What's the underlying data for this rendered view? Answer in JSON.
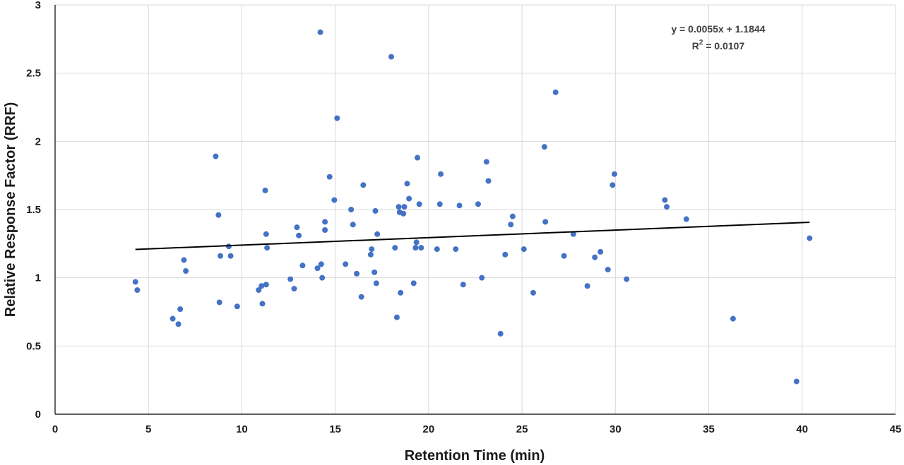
{
  "chart_data": {
    "type": "scatter",
    "xlabel": "Retention Time (min)",
    "ylabel": "Relative Response Factor (RRF)",
    "xlim": [
      0,
      45
    ],
    "ylim": [
      0,
      3
    ],
    "x_ticks": [
      "0",
      "5",
      "10",
      "15",
      "20",
      "25",
      "30",
      "35",
      "40",
      "45"
    ],
    "y_ticks": [
      "0",
      "0.5",
      "1",
      "1.5",
      "2",
      "2.5",
      "3"
    ],
    "grid": true,
    "marker_color": "#4472C4",
    "trendline": {
      "slope": 0.0055,
      "intercept": 1.1844,
      "x_range": [
        4.3,
        40.4
      ],
      "equation": "y = 0.0055x + 1.1844",
      "r2_prefix": "R",
      "r2_sup": "2",
      "r2_value": " = 0.0107"
    },
    "series": [
      {
        "points": [
          [
            4.3,
            0.97
          ],
          [
            4.4,
            0.91
          ],
          [
            6.3,
            0.7
          ],
          [
            6.6,
            0.66
          ],
          [
            6.7,
            0.77
          ],
          [
            6.9,
            1.13
          ],
          [
            7.0,
            1.05
          ],
          [
            8.6,
            1.89
          ],
          [
            8.75,
            1.46
          ],
          [
            8.8,
            0.82
          ],
          [
            8.85,
            1.16
          ],
          [
            9.3,
            1.23
          ],
          [
            9.4,
            1.16
          ],
          [
            9.75,
            0.79
          ],
          [
            10.9,
            0.91
          ],
          [
            11.05,
            0.94
          ],
          [
            11.1,
            0.81
          ],
          [
            11.25,
            1.64
          ],
          [
            11.3,
            1.32
          ],
          [
            11.3,
            0.95
          ],
          [
            11.35,
            1.22
          ],
          [
            12.6,
            0.99
          ],
          [
            12.8,
            0.92
          ],
          [
            12.95,
            1.37
          ],
          [
            13.05,
            1.31
          ],
          [
            13.25,
            1.09
          ],
          [
            14.05,
            1.07
          ],
          [
            14.2,
            2.8
          ],
          [
            14.25,
            1.1
          ],
          [
            14.3,
            1.0
          ],
          [
            14.45,
            1.41
          ],
          [
            14.45,
            1.35
          ],
          [
            14.7,
            1.74
          ],
          [
            14.95,
            1.57
          ],
          [
            15.1,
            2.17
          ],
          [
            15.55,
            1.1
          ],
          [
            15.85,
            1.5
          ],
          [
            15.95,
            1.39
          ],
          [
            16.15,
            1.03
          ],
          [
            16.4,
            0.86
          ],
          [
            16.5,
            1.68
          ],
          [
            16.9,
            1.17
          ],
          [
            16.95,
            1.21
          ],
          [
            17.1,
            1.04
          ],
          [
            17.15,
            1.49
          ],
          [
            17.2,
            0.96
          ],
          [
            17.25,
            1.32
          ],
          [
            18.0,
            2.62
          ],
          [
            18.2,
            1.22
          ],
          [
            18.3,
            0.71
          ],
          [
            18.4,
            1.52
          ],
          [
            18.45,
            1.48
          ],
          [
            18.5,
            0.89
          ],
          [
            18.65,
            1.47
          ],
          [
            18.7,
            1.52
          ],
          [
            18.85,
            1.69
          ],
          [
            18.95,
            1.58
          ],
          [
            19.2,
            0.96
          ],
          [
            19.3,
            1.22
          ],
          [
            19.35,
            1.26
          ],
          [
            19.4,
            1.88
          ],
          [
            19.5,
            1.54
          ],
          [
            19.6,
            1.22
          ],
          [
            20.45,
            1.21
          ],
          [
            20.6,
            1.54
          ],
          [
            20.65,
            1.76
          ],
          [
            21.45,
            1.21
          ],
          [
            21.65,
            1.53
          ],
          [
            21.85,
            0.95
          ],
          [
            22.65,
            1.54
          ],
          [
            22.85,
            1.0
          ],
          [
            23.1,
            1.85
          ],
          [
            23.2,
            1.71
          ],
          [
            23.85,
            0.59
          ],
          [
            24.1,
            1.17
          ],
          [
            24.4,
            1.39
          ],
          [
            24.5,
            1.45
          ],
          [
            25.1,
            1.21
          ],
          [
            25.6,
            0.89
          ],
          [
            26.2,
            1.96
          ],
          [
            26.25,
            1.41
          ],
          [
            26.8,
            2.36
          ],
          [
            27.25,
            1.16
          ],
          [
            27.75,
            1.32
          ],
          [
            28.5,
            0.94
          ],
          [
            28.9,
            1.15
          ],
          [
            29.2,
            1.19
          ],
          [
            29.6,
            1.06
          ],
          [
            29.85,
            1.68
          ],
          [
            29.95,
            1.76
          ],
          [
            30.6,
            0.99
          ],
          [
            32.65,
            1.57
          ],
          [
            32.75,
            1.52
          ],
          [
            33.8,
            1.43
          ],
          [
            36.3,
            0.7
          ],
          [
            39.7,
            0.24
          ],
          [
            40.4,
            1.29
          ]
        ]
      }
    ]
  }
}
